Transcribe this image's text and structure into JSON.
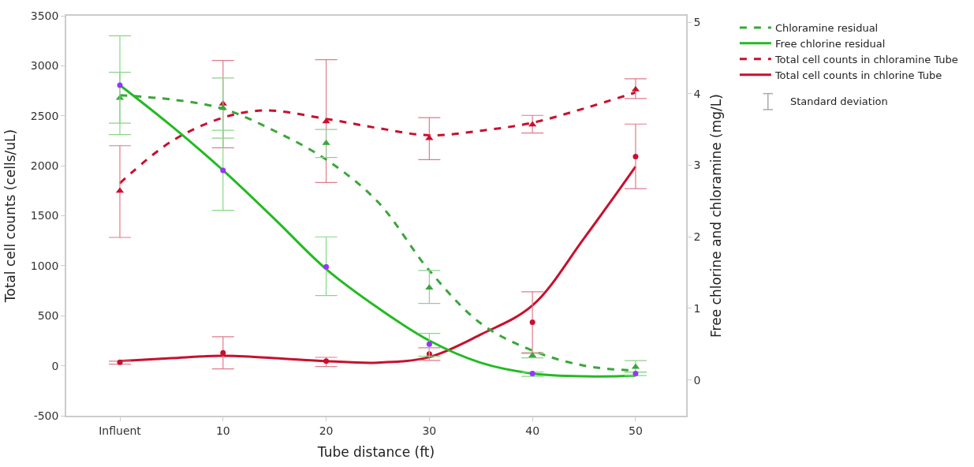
{
  "chart_data": {
    "type": "line",
    "xlabel": "Tube distance (ft)",
    "ylabel": "Total cell counts (cells/uL)",
    "y2label": "Free chlorine and chloramine (mg/L)",
    "xlim": [
      -5.2,
      54.9
    ],
    "xticks": [
      {
        "value": 0,
        "label": "Influent"
      },
      10,
      20,
      30,
      40,
      50
    ],
    "ylim": [
      -500,
      3500
    ],
    "yticks": [
      -500,
      0,
      500,
      1000,
      1500,
      2000,
      2500,
      3000,
      3500
    ],
    "y2lim": [
      -0.5,
      5.09
    ],
    "y2ticks": [
      0,
      1,
      2,
      3,
      4,
      5
    ],
    "grid": false,
    "legend": "top right",
    "annotations": [
      "Standard deviation"
    ],
    "series": [
      {
        "name": "Chloramine residual",
        "axis": "y2",
        "line_style": "dashed",
        "marker": "none",
        "color": "#3aa63a",
        "x": [
          0,
          5,
          10,
          15,
          20,
          25,
          30,
          35,
          40,
          45,
          50
        ],
        "values": [
          3.98,
          3.92,
          3.79,
          3.48,
          3.08,
          2.49,
          1.53,
          0.79,
          0.41,
          0.2,
          0.13
        ]
      },
      {
        "name": "Free chlorine residual",
        "axis": "y2",
        "line_style": "solid",
        "marker": "none",
        "color": "#22bb22",
        "x": [
          0,
          5,
          10,
          15,
          20,
          25,
          30,
          35,
          40,
          45,
          50
        ],
        "values": [
          4.12,
          3.55,
          2.93,
          2.25,
          1.55,
          1.01,
          0.55,
          0.24,
          0.09,
          0.05,
          0.06
        ]
      },
      {
        "name": "Total cell counts in chloramine Tube",
        "axis": "y",
        "line_style": "dashed",
        "marker": "none",
        "color": "#c8102e",
        "x": [
          0,
          5,
          10,
          14,
          20,
          25,
          30,
          35,
          40,
          45,
          50
        ],
        "values": [
          1825,
          2244,
          2481,
          2553,
          2469,
          2377,
          2305,
          2351,
          2430,
          2573,
          2733
        ]
      },
      {
        "name": "Total cell counts in chlorine Tube",
        "axis": "y",
        "line_style": "solid",
        "marker": "none",
        "color": "#c8102e",
        "x": [
          0,
          5,
          10,
          15,
          20,
          25,
          30,
          35,
          40,
          45,
          50
        ],
        "values": [
          47,
          76,
          99,
          76,
          46,
          31,
          87,
          313,
          603,
          1275,
          1993
        ]
      },
      {
        "type": "scatter",
        "axis": "y2",
        "marker": "triangle",
        "color": "#3aa63a",
        "x": [
          0,
          10,
          20,
          30,
          40,
          50
        ],
        "values": [
          3.94,
          3.8,
          3.31,
          1.29,
          0.34,
          0.18
        ],
        "errors": [
          [
            3.59,
            4.3
          ],
          [
            3.38,
            4.22
          ],
          [
            3.11,
            3.5
          ],
          [
            1.07,
            1.53
          ],
          [
            0.31,
            0.37
          ],
          [
            0.11,
            0.27
          ]
        ]
      },
      {
        "type": "scatter",
        "axis": "y2",
        "marker": "circle",
        "color": "#9933ff",
        "x": [
          0,
          10,
          20,
          30,
          40,
          50
        ],
        "values": [
          4.12,
          2.93,
          1.58,
          0.5,
          0.09,
          0.09
        ],
        "errors": [
          [
            3.43,
            4.81
          ],
          [
            2.37,
            3.49
          ],
          [
            1.18,
            2.0
          ],
          [
            0.33,
            0.65
          ],
          [
            0.05,
            0.11
          ],
          [
            0.06,
            0.11
          ]
        ]
      },
      {
        "type": "scatter",
        "axis": "y",
        "marker": "triangle",
        "color": "#c8102e",
        "x": [
          0,
          10,
          20,
          30,
          40,
          50
        ],
        "values": [
          1748,
          2620,
          2443,
          2275,
          2412,
          2763
        ],
        "errors": [
          [
            1283,
            2200
          ],
          [
            2180,
            3053
          ],
          [
            1832,
            3061
          ],
          [
            2061,
            2481
          ],
          [
            2328,
            2504
          ],
          [
            2672,
            2870
          ]
        ]
      },
      {
        "type": "scatter",
        "axis": "y",
        "marker": "circle",
        "color": "#c8102e",
        "x": [
          0,
          10,
          20,
          30,
          40,
          50
        ],
        "values": [
          34,
          130,
          46,
          118,
          435,
          2092
        ],
        "errors": [
          [
            15,
            46
          ],
          [
            -31,
            290
          ],
          [
            -8,
            84
          ],
          [
            53,
            179
          ],
          [
            130,
            740
          ],
          [
            1771,
            2417
          ]
        ]
      }
    ]
  }
}
